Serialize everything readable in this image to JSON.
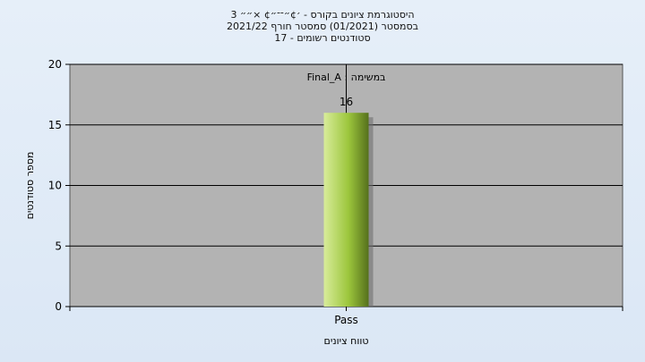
{
  "chart_data": {
    "type": "bar",
    "title_lines": [
      "היסטוגרמת ציונים בקורס - ׳¢״־־״¢ ×״״ 3",
      "בסמסטר  (01/2021)  סמסטר חורף 2021/22",
      "סטודנטים רשומים - 17"
    ],
    "annotation": "Final_A : במשימה",
    "categories": [
      "Pass"
    ],
    "values": [
      16
    ],
    "data_labels": [
      "16"
    ],
    "xlabel": "טווח ציונים",
    "ylabel": "מספר סטודנטים",
    "ylim": [
      0,
      20
    ],
    "yticks": [
      0,
      5,
      10,
      15,
      20
    ],
    "grid": true,
    "legend": "none",
    "colors": {
      "plot_background": "#b3b3b3",
      "bar_light": "#d8ec9a",
      "bar_mid": "#9cc63c",
      "bar_dark": "#55701c",
      "grid": "#000000",
      "page_background": "#e2ecf7"
    }
  }
}
